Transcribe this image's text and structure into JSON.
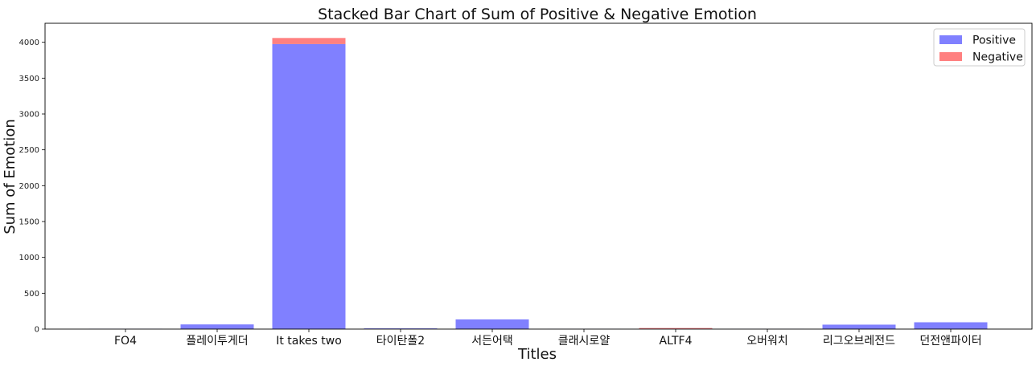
{
  "chart_data": {
    "type": "bar",
    "stacked": true,
    "title": "Stacked Bar Chart of Sum of Positive & Negative Emotion",
    "xlabel": "Titles",
    "ylabel": "Sum of Emotion",
    "categories": [
      "FO4",
      "플레이투게더",
      "It takes two",
      "타이탄폴2",
      "서든어택",
      "클래시로얄",
      "ALTF4",
      "오버워치",
      "리그오브레전드",
      "던전앤파이터"
    ],
    "series": [
      {
        "name": "Positive",
        "color": "#8080ff",
        "values": [
          3,
          65,
          3975,
          10,
          135,
          2,
          5,
          2,
          62,
          95
        ]
      },
      {
        "name": "Negative",
        "color": "#ff8080",
        "values": [
          0,
          0,
          85,
          0,
          0,
          0,
          10,
          0,
          0,
          0
        ]
      }
    ],
    "yticks": [
      0,
      500,
      1000,
      1500,
      2000,
      2500,
      3000,
      3500,
      4000
    ],
    "ylim": [
      0,
      4265
    ],
    "grid": false,
    "legend_position": "top-right"
  }
}
